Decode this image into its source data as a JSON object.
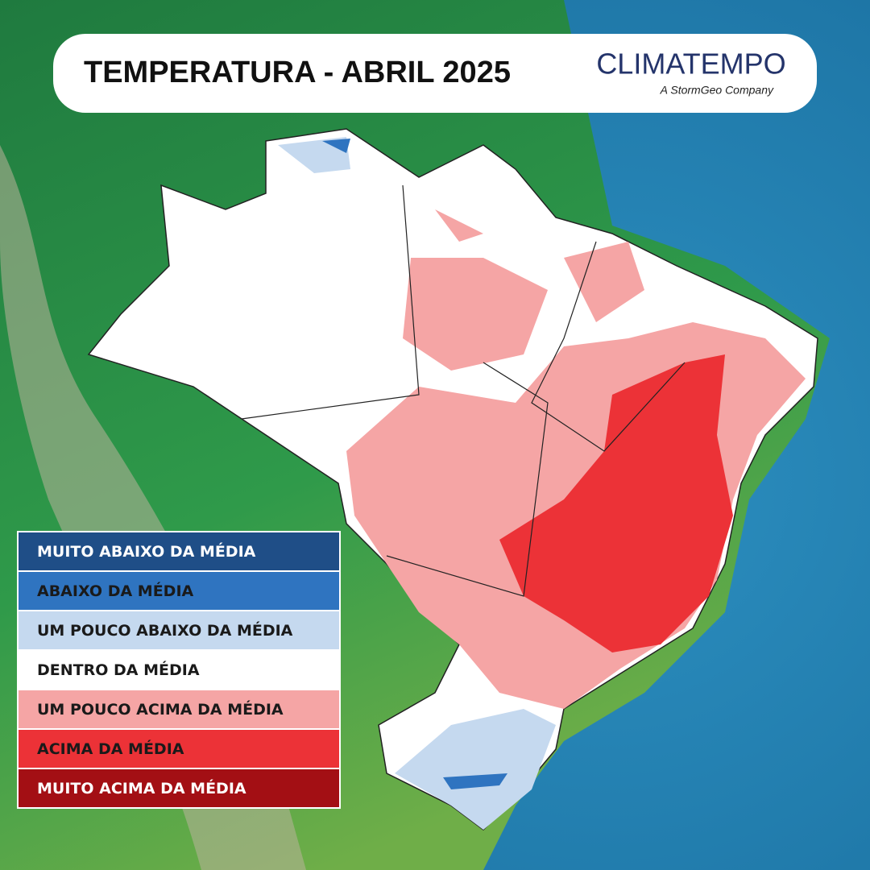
{
  "header": {
    "title": "TEMPERATURA - ABRIL 2025",
    "brand": "CLIMATEMPO",
    "tagline": "A StormGeo Company"
  },
  "legend": {
    "items": [
      {
        "label": "MUITO ABAIXO DA MÉDIA",
        "color": "#1f4e87",
        "text_color": "#ffffff"
      },
      {
        "label": "ABAIXO DA MÉDIA",
        "color": "#2f74c0",
        "text_color": "#1a1a1a"
      },
      {
        "label": "UM POUCO ABAIXO DA MÉDIA",
        "color": "#c5d9ef",
        "text_color": "#1a1a1a"
      },
      {
        "label": "DENTRO DA MÉDIA",
        "color": "#ffffff",
        "text_color": "#1a1a1a"
      },
      {
        "label": "UM POUCO ACIMA DA MÉDIA",
        "color": "#f5a5a5",
        "text_color": "#1a1a1a"
      },
      {
        "label": "ACIMA DA MÉDIA",
        "color": "#ec3237",
        "text_color": "#1a1a1a"
      },
      {
        "label": "MUITO ACIMA DA MÉDIA",
        "color": "#a30f14",
        "text_color": "#ffffff"
      }
    ]
  }
}
